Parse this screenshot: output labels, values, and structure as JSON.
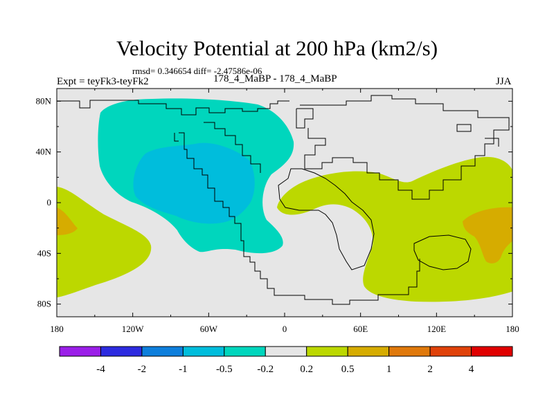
{
  "title": "Velocity Potential at 200 hPa (km2/s)",
  "stats": "rmsd= 0.346654 diff= -2.47586e-06",
  "experiment": "Expt = teyFk3-teyFk2",
  "case_label": "178_4_MaBP - 178_4_MaBP",
  "season": "JJA",
  "map": {
    "projection": "cylindrical equidistant",
    "lon_range": [
      -180,
      180
    ],
    "lat_range": [
      -90,
      90
    ],
    "x_tick_labels": [
      "180",
      "120W",
      "60W",
      "0",
      "60E",
      "120E",
      "180"
    ],
    "y_tick_labels": [
      "80N",
      "40N",
      "0",
      "40S",
      "80S"
    ],
    "background_color": "#e6e6e6"
  },
  "fields": [
    {
      "name": "positive anomaly region (0.2 to 0.5)",
      "color": "#bcd800"
    },
    {
      "name": "positive anomaly region (0.5 to 1)",
      "color": "#d6ac00"
    },
    {
      "name": "negative anomaly region (-0.5 to -0.2)",
      "color": "#00d6bd"
    },
    {
      "name": "negative anomaly region (-1 to -0.5)",
      "color": "#00bddc"
    }
  ],
  "colorbar": {
    "colors": [
      "#9b1fe8",
      "#2d2be0",
      "#0e7fdc",
      "#00bddc",
      "#00d6bd",
      "#e6e6e6",
      "#bcd800",
      "#d6ac00",
      "#e0790b",
      "#e0420a",
      "#e00000"
    ],
    "labels": [
      "-4",
      "-2",
      "-1",
      "-0.5",
      "-0.2",
      "0.2",
      "0.5",
      "1",
      "2",
      "4"
    ]
  }
}
